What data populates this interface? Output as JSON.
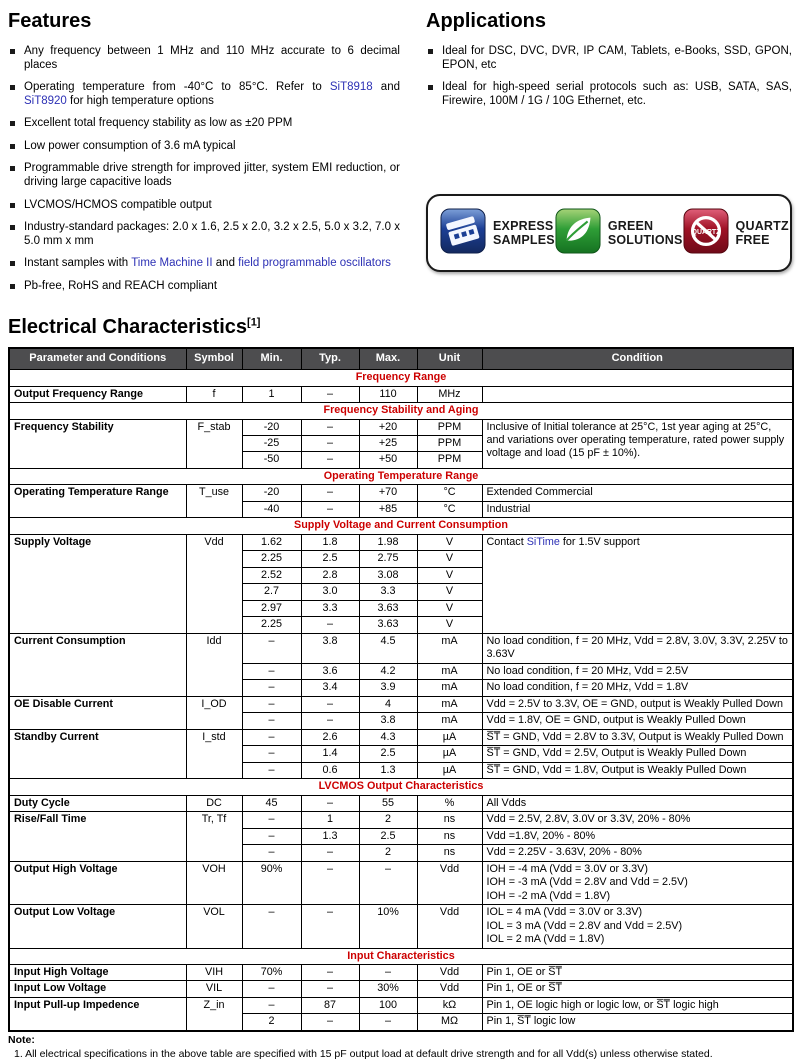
{
  "colors": {
    "section_red": "#cc0000",
    "link_blue": "#2d31b5",
    "table_header_bg": "#4d4d4f",
    "badge_blue": "#1c3f95",
    "badge_green": "#2f9e37",
    "badge_red": "#a01226"
  },
  "features": {
    "title": "Features",
    "items": [
      {
        "parts": [
          {
            "t": "Any frequency between 1 MHz and 110 MHz accurate to 6 decimal places"
          }
        ]
      },
      {
        "parts": [
          {
            "t": "Operating temperature from -40°C to 85°C. Refer to "
          },
          {
            "t": "SiT8918",
            "link": true
          },
          {
            "t": " and "
          },
          {
            "t": "SiT8920",
            "link": true
          },
          {
            "t": " for high temperature options"
          }
        ]
      },
      {
        "parts": [
          {
            "t": "Excellent total frequency stability as low as ±20 PPM"
          }
        ]
      },
      {
        "parts": [
          {
            "t": "Low power consumption of 3.6 mA typical"
          }
        ]
      },
      {
        "parts": [
          {
            "t": "Programmable drive strength for improved jitter, system EMI reduction, or driving large capacitive loads"
          }
        ]
      },
      {
        "parts": [
          {
            "t": "LVCMOS/HCMOS compatible output"
          }
        ]
      },
      {
        "parts": [
          {
            "t": "Industry-standard packages: 2.0 x 1.6, 2.5 x 2.0, 3.2 x 2.5, 5.0 x 3.2, 7.0 x 5.0 mm x mm"
          }
        ]
      },
      {
        "parts": [
          {
            "t": "Instant samples with "
          },
          {
            "t": "Time Machine II",
            "link": true
          },
          {
            "t": " and "
          },
          {
            "t": "field programmable oscillators",
            "link": true
          }
        ]
      },
      {
        "parts": [
          {
            "t": "Pb-free, RoHS and REACH compliant"
          }
        ]
      }
    ]
  },
  "applications": {
    "title": "Applications",
    "items": [
      {
        "parts": [
          {
            "t": "Ideal for DSC, DVC, DVR, IP CAM, Tablets, e-Books, SSD, GPON, EPON, etc"
          }
        ]
      },
      {
        "parts": [
          {
            "t": "Ideal for high-speed serial protocols such as: USB, SATA, SAS, Firewire, 100M / 1G / 10G Ethernet, etc."
          }
        ]
      }
    ]
  },
  "badges": {
    "items": [
      {
        "icon": "express-samples-icon",
        "label_lines": [
          "EXPRESS",
          "SAMPLES"
        ]
      },
      {
        "icon": "green-solutions-icon",
        "label_lines": [
          "GREEN",
          "SOLUTIONS"
        ]
      },
      {
        "icon": "quartz-free-icon",
        "label_lines": [
          "QUARTZ",
          "FREE"
        ],
        "icon_text": "QUARTZ"
      }
    ]
  },
  "elec": {
    "title": "Electrical Characteristics",
    "sup": "[1]"
  },
  "table": {
    "columns": [
      "Parameter and Conditions",
      "Symbol",
      "Min.",
      "Typ.",
      "Max.",
      "Unit",
      "Condition"
    ],
    "sections": [
      {
        "title": "Frequency Range",
        "groups": [
          {
            "parameter": "Output Frequency Range",
            "symbol": "f",
            "rows": [
              {
                "min": "1",
                "typ": "–",
                "max": "110",
                "unit": "MHz",
                "condition": ""
              }
            ]
          }
        ]
      },
      {
        "title": "Frequency Stability and Aging",
        "groups": [
          {
            "parameter": "Frequency Stability",
            "symbol": "F_stab",
            "condition": "Inclusive of Initial tolerance at 25°C, 1st year aging at 25°C, and variations over operating temperature, rated power supply voltage and load (15 pF ± 10%).",
            "rows": [
              {
                "min": "-20",
                "typ": "–",
                "max": "+20",
                "unit": "PPM"
              },
              {
                "min": "-25",
                "typ": "–",
                "max": "+25",
                "unit": "PPM"
              },
              {
                "min": "-50",
                "typ": "–",
                "max": "+50",
                "unit": "PPM"
              }
            ]
          }
        ]
      },
      {
        "title": "Operating Temperature Range",
        "groups": [
          {
            "parameter": "Operating Temperature Range",
            "symbol": "T_use",
            "rows": [
              {
                "min": "-20",
                "typ": "–",
                "max": "+70",
                "unit": "°C",
                "condition": "Extended Commercial"
              },
              {
                "min": "-40",
                "typ": "–",
                "max": "+85",
                "unit": "°C",
                "condition": "Industrial"
              }
            ]
          }
        ]
      },
      {
        "title": "Supply Voltage and Current Consumption",
        "groups": [
          {
            "parameter": "Supply Voltage",
            "symbol": "Vdd",
            "condition_parts": [
              {
                "t": "Contact "
              },
              {
                "t": "SiTime",
                "link": true
              },
              {
                "t": " for 1.5V support"
              }
            ],
            "rows": [
              {
                "min": "1.62",
                "typ": "1.8",
                "max": "1.98",
                "unit": "V"
              },
              {
                "min": "2.25",
                "typ": "2.5",
                "max": "2.75",
                "unit": "V"
              },
              {
                "min": "2.52",
                "typ": "2.8",
                "max": "3.08",
                "unit": "V"
              },
              {
                "min": "2.7",
                "typ": "3.0",
                "max": "3.3",
                "unit": "V"
              },
              {
                "min": "2.97",
                "typ": "3.3",
                "max": "3.63",
                "unit": "V"
              },
              {
                "min": "2.25",
                "typ": "–",
                "max": "3.63",
                "unit": "V"
              }
            ]
          },
          {
            "parameter": "Current Consumption",
            "symbol": "Idd",
            "rows": [
              {
                "min": "–",
                "typ": "3.8",
                "max": "4.5",
                "unit": "mA",
                "condition": "No load condition, f = 20 MHz, Vdd = 2.8V, 3.0V, 3.3V, 2.25V to 3.63V"
              },
              {
                "min": "–",
                "typ": "3.6",
                "max": "4.2",
                "unit": "mA",
                "condition": "No load condition, f = 20 MHz, Vdd = 2.5V"
              },
              {
                "min": "–",
                "typ": "3.4",
                "max": "3.9",
                "unit": "mA",
                "condition": "No load condition, f = 20 MHz, Vdd = 1.8V"
              }
            ]
          },
          {
            "parameter": "OE Disable Current",
            "symbol": "I_OD",
            "rows": [
              {
                "min": "–",
                "typ": "–",
                "max": "4",
                "unit": "mA",
                "condition": "Vdd = 2.5V to 3.3V, OE = GND, output is Weakly Pulled Down"
              },
              {
                "min": "–",
                "typ": "–",
                "max": "3.8",
                "unit": "mA",
                "condition": "Vdd = 1.8V, OE = GND, output is Weakly Pulled Down"
              }
            ]
          },
          {
            "parameter": "Standby Current",
            "symbol": "I_std",
            "rows": [
              {
                "min": "–",
                "typ": "2.6",
                "max": "4.3",
                "unit": "µA",
                "condition": "S̅T̅ = GND, Vdd = 2.8V to 3.3V, Output is Weakly Pulled Down"
              },
              {
                "min": "–",
                "typ": "1.4",
                "max": "2.5",
                "unit": "µA",
                "condition": "S̅T̅ = GND, Vdd = 2.5V, Output is Weakly Pulled Down"
              },
              {
                "min": "–",
                "typ": "0.6",
                "max": "1.3",
                "unit": "µA",
                "condition": "S̅T̅ = GND, Vdd = 1.8V, Output is Weakly Pulled Down"
              }
            ]
          }
        ]
      },
      {
        "title": "LVCMOS Output Characteristics",
        "groups": [
          {
            "parameter": "Duty Cycle",
            "symbol": "DC",
            "rows": [
              {
                "min": "45",
                "typ": "–",
                "max": "55",
                "unit": "%",
                "condition": "All Vdds"
              }
            ]
          },
          {
            "parameter": "Rise/Fall Time",
            "symbol": "Tr, Tf",
            "rows": [
              {
                "min": "–",
                "typ": "1",
                "max": "2",
                "unit": "ns",
                "condition": "Vdd = 2.5V, 2.8V, 3.0V or 3.3V, 20% - 80%"
              },
              {
                "min": "–",
                "typ": "1.3",
                "max": "2.5",
                "unit": "ns",
                "condition": "Vdd =1.8V, 20% - 80%"
              },
              {
                "min": "–",
                "typ": "–",
                "max": "2",
                "unit": "ns",
                "condition": "Vdd = 2.25V - 3.63V, 20% - 80%"
              }
            ]
          },
          {
            "parameter": "Output High Voltage",
            "symbol": "VOH",
            "rows": [
              {
                "min": "90%",
                "typ": "–",
                "max": "–",
                "unit": "Vdd",
                "condition": "IOH = -4 mA (Vdd = 3.0V or 3.3V)\nIOH = -3 mA (Vdd = 2.8V and Vdd = 2.5V)\nIOH = -2 mA (Vdd = 1.8V)"
              }
            ]
          },
          {
            "parameter": "Output Low Voltage",
            "symbol": "VOL",
            "rows": [
              {
                "min": "–",
                "typ": "–",
                "max": "10%",
                "unit": "Vdd",
                "condition": "IOL = 4 mA (Vdd = 3.0V or 3.3V)\nIOL = 3 mA (Vdd = 2.8V and Vdd = 2.5V)\nIOL = 2 mA (Vdd = 1.8V)"
              }
            ]
          }
        ]
      },
      {
        "title": "Input Characteristics",
        "groups": [
          {
            "parameter": "Input High Voltage",
            "symbol": "VIH",
            "rows": [
              {
                "min": "70%",
                "typ": "–",
                "max": "–",
                "unit": "Vdd",
                "condition": "Pin 1, OE or S̅T̅"
              }
            ]
          },
          {
            "parameter": "Input Low Voltage",
            "symbol": "VIL",
            "rows": [
              {
                "min": "–",
                "typ": "–",
                "max": "30%",
                "unit": "Vdd",
                "condition": "Pin 1, OE or S̅T̅"
              }
            ]
          },
          {
            "parameter": "Input Pull-up Impedence",
            "symbol": "Z_in",
            "rows": [
              {
                "min": "–",
                "typ": "87",
                "max": "100",
                "unit": "kΩ",
                "condition": "Pin 1, OE logic high or logic low, or S̅T̅ logic high"
              },
              {
                "min": "2",
                "typ": "–",
                "max": "–",
                "unit": "MΩ",
                "condition": "Pin 1, S̅T̅ logic low"
              }
            ]
          }
        ]
      }
    ]
  },
  "note": {
    "label": "Note:",
    "items": [
      "1. All electrical specifications in the above table are specified with 15 pF output load at default drive strength and for all Vdd(s) unless otherwise stated."
    ]
  }
}
